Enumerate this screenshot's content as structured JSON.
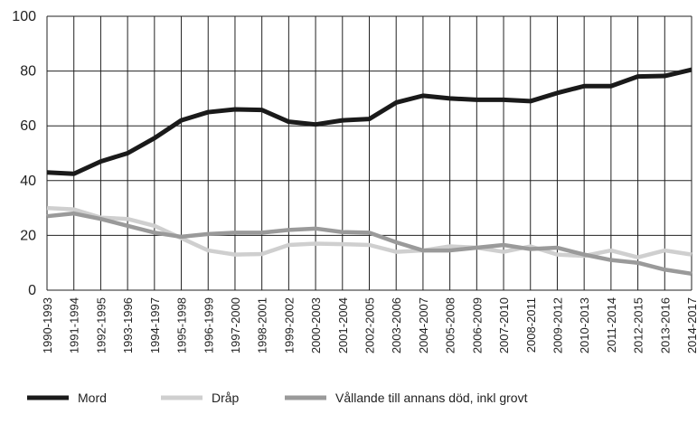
{
  "chart_data": {
    "type": "line",
    "categories": [
      "1990-1993",
      "1991-1994",
      "1992-1995",
      "1993-1996",
      "1994-1997",
      "1995-1998",
      "1996-1999",
      "1997-2000",
      "1998-2001",
      "1999-2002",
      "2000-2003",
      "2001-2004",
      "2002-2005",
      "2003-2006",
      "2004-2007",
      "2005-2008",
      "2006-2009",
      "2007-2010",
      "2008-2011",
      "2009-2012",
      "2010-2013",
      "2011-2014",
      "2012-2015",
      "2013-2016",
      "2014-2017"
    ],
    "series": [
      {
        "name": "Mord",
        "color": "#1a1a1a",
        "values": [
          43,
          42.5,
          47,
          50,
          55.5,
          62,
          65,
          66,
          65.8,
          61.5,
          60.5,
          62,
          62.5,
          68.5,
          71,
          70,
          69.5,
          69.5,
          69,
          72,
          74.5,
          74.5,
          78,
          78.2,
          80.5
        ]
      },
      {
        "name": "Dråp",
        "color": "#cfcfcf",
        "values": [
          30,
          29.5,
          26.5,
          26,
          23.5,
          19,
          14.5,
          13,
          13.2,
          16.5,
          17,
          16.8,
          16.5,
          14,
          14.5,
          16,
          15.5,
          14,
          16,
          13,
          12.5,
          14.5,
          12,
          14.5,
          13
        ]
      },
      {
        "name": "Vållande till annans död, inkl grovt",
        "color": "#9a9a9a",
        "values": [
          27,
          28,
          26,
          23.5,
          21,
          19.5,
          20.5,
          21,
          21,
          22,
          22.5,
          21.2,
          21,
          17.5,
          14.5,
          14.5,
          15.5,
          16.5,
          15,
          15.5,
          13,
          11,
          10,
          7.5,
          6
        ]
      }
    ],
    "ylim": [
      0,
      100
    ],
    "yticks": [
      0,
      20,
      40,
      60,
      80,
      100
    ],
    "grid": true
  }
}
